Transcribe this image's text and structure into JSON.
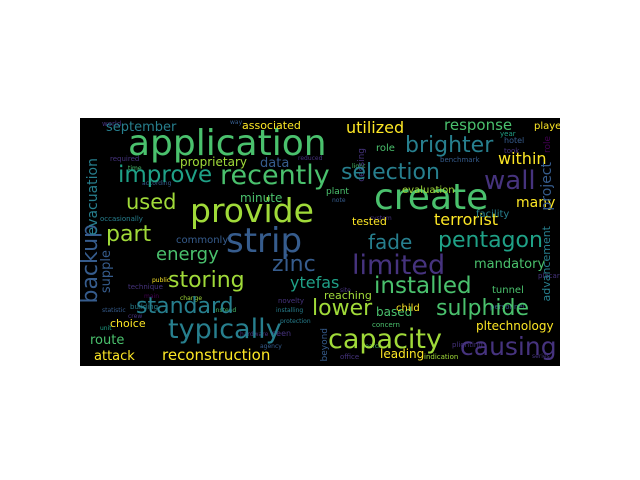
{
  "figure": {
    "background": "#ffffff",
    "cloud_background": "#000000",
    "palette": [
      "#440154",
      "#46337e",
      "#365c8d",
      "#277f8e",
      "#1fa187",
      "#4ac16d",
      "#a0da39",
      "#fde725"
    ]
  },
  "words": {
    "application": "application",
    "create": "create",
    "provide": "provide",
    "strip": "strip",
    "improve": "improve",
    "recently": "recently",
    "selection": "selection",
    "brighter": "brighter",
    "wall": "wall",
    "used": "used",
    "part": "part",
    "backup": "backup",
    "energy": "energy",
    "zinc": "zinc",
    "limited": "limited",
    "fade": "fade",
    "pentagon": "pentagon",
    "installed": "installed",
    "storing": "storing",
    "standard": "standard",
    "lower": "lower",
    "sulphide": "sulphide",
    "typically": "typically",
    "capacity": "capacity",
    "causing": "causing",
    "reconstruction": "reconstruction",
    "attack": "attack",
    "route": "route",
    "choice": "choice",
    "leading": "leading",
    "utilized": "utilized",
    "response": "response",
    "september": "september",
    "associated": "associated",
    "proprietary": "proprietary",
    "within": "within",
    "terrorist": "terrorist",
    "mandatory": "mandatory",
    "evacuation": "evacuation",
    "project": "project",
    "many": "many",
    "minute": "minute",
    "data": "data",
    "ytefas": "ytefas",
    "based": "based",
    "reaching": "reaching",
    "child": "child",
    "tested": "tested",
    "evaluation": "evaluation",
    "plant": "plant",
    "facility": "facility",
    "commonly": "commonly",
    "role": "role",
    "cessing": "cessing",
    "pltechnology": "pltechnology",
    "tunnel": "tunnel",
    "advancement": "advancement",
    "supple": "supple",
    "seen": "seen",
    "beyond": "beyond",
    "indication": "indication",
    "played": "played",
    "hotel": "hotel",
    "took": "took",
    "plighting": "plighting",
    "occasionally": "occasionally",
    "concern": "concern",
    "search": "search",
    "office": "office",
    "series": "series",
    "personnel": "personnel",
    "novelty": "novelty",
    "protection": "protection",
    "building": "building",
    "according": "according",
    "required": "required",
    "agency": "agency",
    "reduced": "reduced",
    "installing": "installing",
    "benchmark": "benchmark",
    "technique": "technique",
    "statistic": "statistic",
    "hardware": "hardware",
    "instead": "instead",
    "system": "system",
    "way": "way",
    "crew": "crew",
    "time": "time",
    "unit": "unit",
    "main": "main",
    "placard": "placard",
    "change": "change",
    "site": "site",
    "world": "world",
    "year": "year",
    "note": "note",
    "public": "public",
    "light": "light"
  }
}
